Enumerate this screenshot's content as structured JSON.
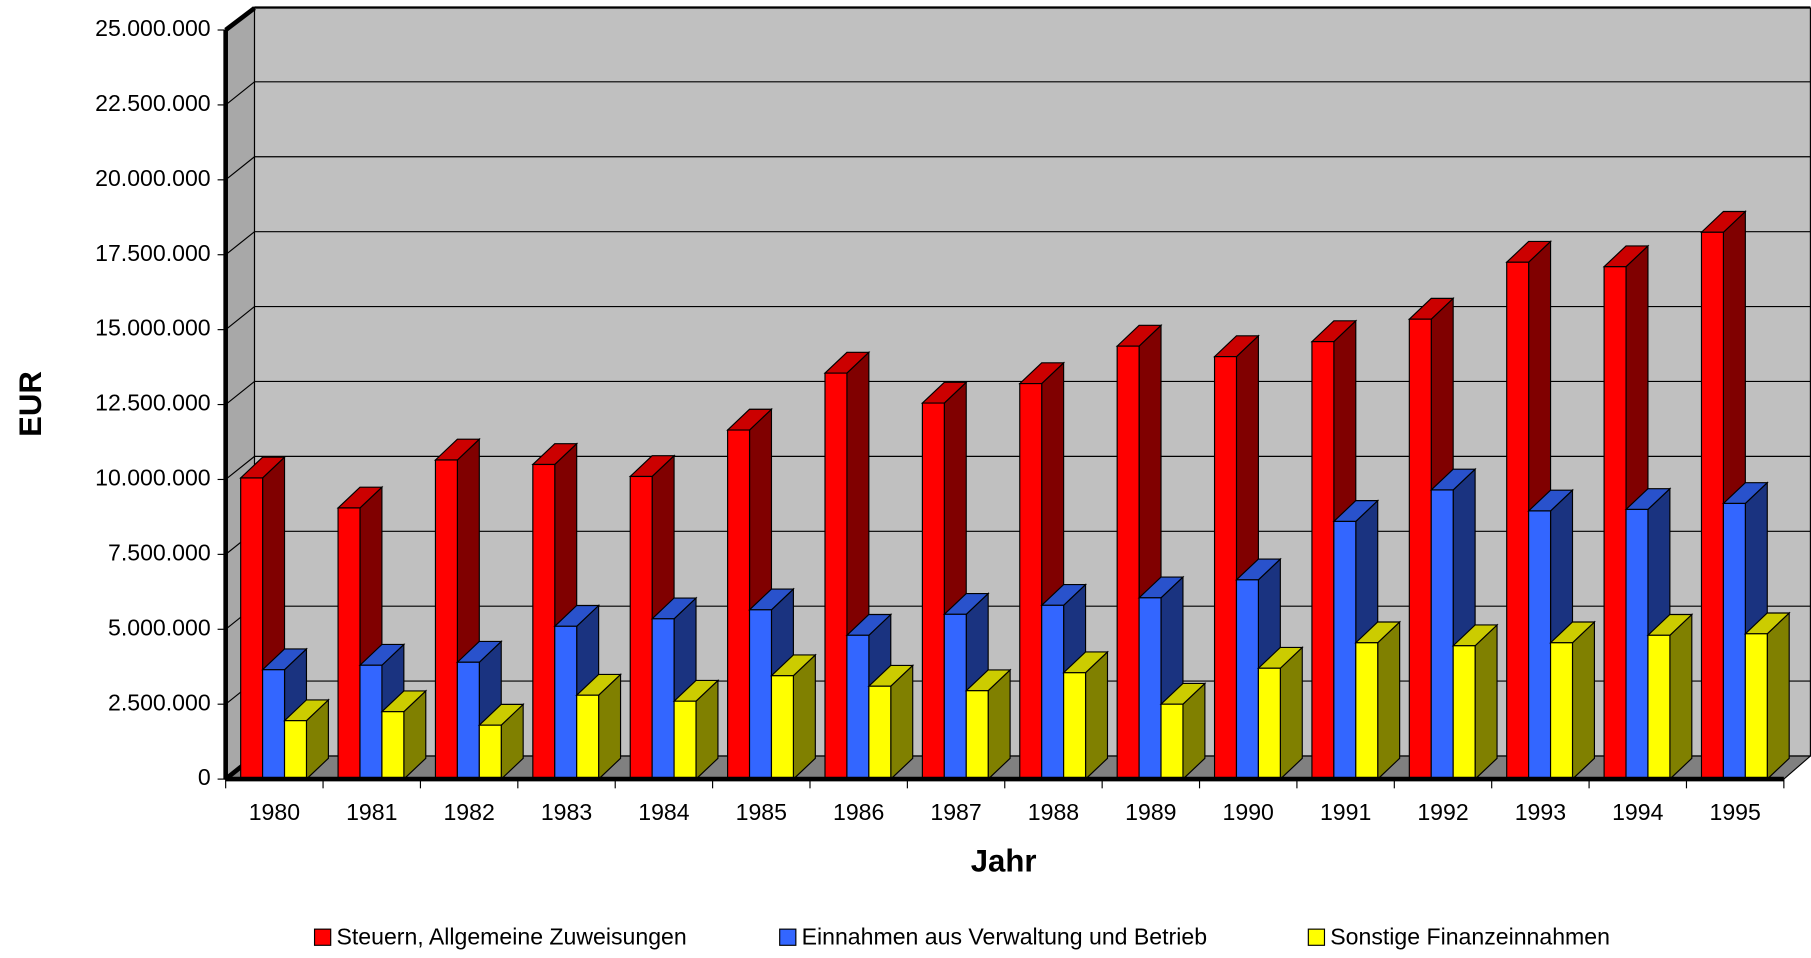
{
  "chart_data": {
    "type": "bar3d",
    "x_label": "Jahr",
    "y_label": "EUR",
    "categories": [
      "1980",
      "1981",
      "1982",
      "1983",
      "1984",
      "1985",
      "1986",
      "1987",
      "1988",
      "1989",
      "1990",
      "1991",
      "1992",
      "1993",
      "1994",
      "1995"
    ],
    "series": [
      {
        "name": "Steuern, Allgemeine Zuweisungen",
        "color": "#ff0000",
        "values": [
          10050000,
          9050000,
          10650000,
          10500000,
          10100000,
          11650000,
          13550000,
          12550000,
          13200000,
          14450000,
          14100000,
          14600000,
          15350000,
          17250000,
          17100000,
          18250000
        ]
      },
      {
        "name": "Einnahmen aus Verwaltung und Betrieb",
        "color": "#3366ff",
        "values": [
          3650000,
          3800000,
          3900000,
          5100000,
          5350000,
          5650000,
          4800000,
          5500000,
          5800000,
          6050000,
          6650000,
          8600000,
          9650000,
          8950000,
          9000000,
          9200000
        ]
      },
      {
        "name": "Sonstige Finanzeinnahmen",
        "color": "#ffff00",
        "values": [
          1950000,
          2250000,
          1800000,
          2800000,
          2600000,
          3450000,
          3100000,
          2950000,
          3550000,
          2500000,
          3700000,
          4550000,
          4450000,
          4550000,
          4800000,
          4850000
        ]
      }
    ],
    "ylim": [
      0,
      25000000
    ],
    "yticks": [
      0,
      {
        "value": 2500000,
        "label": "2.500.000"
      },
      {
        "value": 5000000,
        "label": "5.000.000"
      },
      {
        "value": 7500000,
        "label": "7.500.000"
      },
      {
        "value": 10000000,
        "label": "10.000.000"
      },
      {
        "value": 12500000,
        "label": "12.500.000"
      },
      {
        "value": 15000000,
        "label": "15.000.000"
      },
      {
        "value": 17500000,
        "label": "17.500.000"
      },
      {
        "value": 20000000,
        "label": "20.000.000"
      },
      {
        "value": 22500000,
        "label": "22.500.000"
      },
      {
        "value": 25000000,
        "label": "25.000.000"
      }
    ],
    "grid": true,
    "legend": "bottom"
  }
}
